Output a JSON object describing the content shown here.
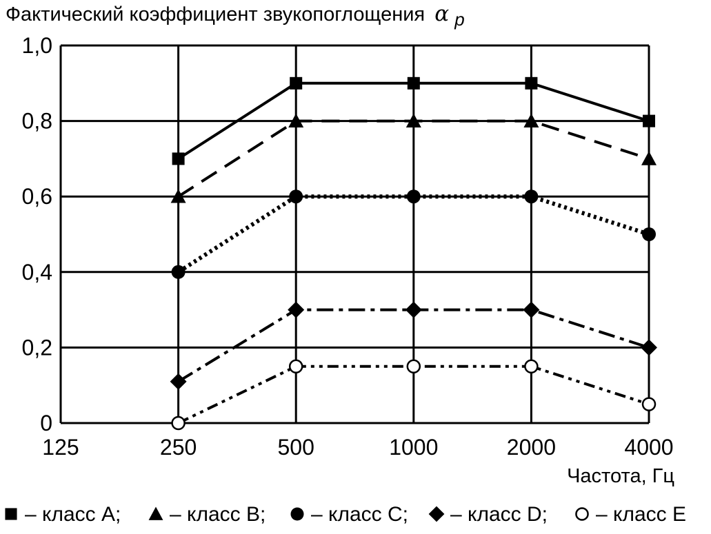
{
  "chart_data": {
    "type": "line",
    "title": "",
    "ylabel": "Фактический коэффициент звукопоглощения",
    "ylabel_symbol": "α",
    "ylabel_subscript": "p",
    "xlabel": "Частота, Гц",
    "categories": [
      "125",
      "250",
      "500",
      "1000",
      "2000",
      "4000"
    ],
    "y_ticks": [
      "0",
      "0,2",
      "0,4",
      "0,6",
      "0,8",
      "1,0"
    ],
    "ylim": [
      0,
      1.0
    ],
    "grid": true,
    "legend_position": "bottom",
    "series": [
      {
        "name": "класс A",
        "marker": "square",
        "dash": "solid",
        "x": [
          "250",
          "500",
          "1000",
          "2000",
          "4000"
        ],
        "values": [
          0.7,
          0.9,
          0.9,
          0.9,
          0.8
        ]
      },
      {
        "name": "класс B",
        "marker": "triangle",
        "dash": "dashed",
        "x": [
          "250",
          "500",
          "1000",
          "2000",
          "4000"
        ],
        "values": [
          0.6,
          0.8,
          0.8,
          0.8,
          0.7
        ]
      },
      {
        "name": "класс C",
        "marker": "circle",
        "dash": "dotted",
        "x": [
          "250",
          "500",
          "1000",
          "2000",
          "4000"
        ],
        "values": [
          0.4,
          0.6,
          0.6,
          0.6,
          0.5
        ]
      },
      {
        "name": "класс D",
        "marker": "diamond",
        "dash": "dash-dot",
        "x": [
          "250",
          "500",
          "1000",
          "2000",
          "4000"
        ],
        "values": [
          0.11,
          0.3,
          0.3,
          0.3,
          0.2
        ]
      },
      {
        "name": "класс E",
        "marker": "open-circle",
        "dash": "dash-dot-dot",
        "x": [
          "250",
          "500",
          "1000",
          "2000",
          "4000"
        ],
        "values": [
          0.0,
          0.15,
          0.15,
          0.15,
          0.05
        ]
      }
    ],
    "legend_items": [
      {
        "marker": "square",
        "label": "– класс A;"
      },
      {
        "marker": "triangle",
        "label": "– класс B;"
      },
      {
        "marker": "circle",
        "label": "– класс C;"
      },
      {
        "marker": "diamond",
        "label": "– класс D;"
      },
      {
        "marker": "open-circle",
        "label": "– класс E"
      }
    ]
  }
}
